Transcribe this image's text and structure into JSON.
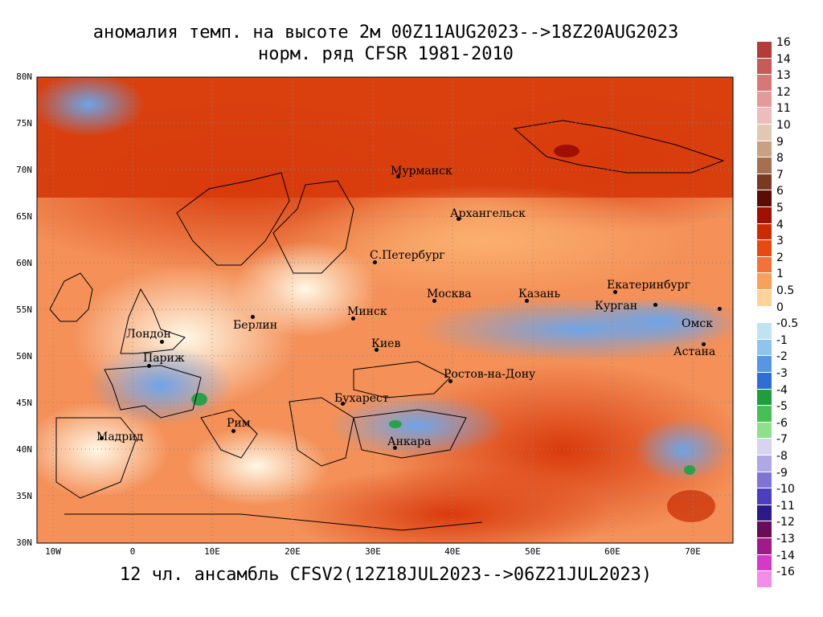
{
  "title_line1": "аномалия темп. на высоте 2м 00Z11AUG2023-->18Z20AUG2023",
  "title_line2": "норм. ряд CFSR 1981-2010",
  "footer": "12 чл. ансамбль CFSV2(12Z18JUL2023-->06Z21JUL2023)",
  "lat_labels": [
    "80N",
    "75N",
    "70N",
    "65N",
    "60N",
    "55N",
    "50N",
    "45N",
    "40N",
    "35N",
    "30N"
  ],
  "lon_labels": [
    "10W",
    "0",
    "10E",
    "20E",
    "30E",
    "40E",
    "50E",
    "60E",
    "70E"
  ],
  "cities": [
    {
      "name": "Мурманск"
    },
    {
      "name": "Архангельск"
    },
    {
      "name": "С.Петербург"
    },
    {
      "name": "Москва"
    },
    {
      "name": "Казань"
    },
    {
      "name": "Екатеринбург"
    },
    {
      "name": "Курган"
    },
    {
      "name": "Омск"
    },
    {
      "name": "Астана"
    },
    {
      "name": "Минск"
    },
    {
      "name": "Киев"
    },
    {
      "name": "Берлин"
    },
    {
      "name": "Лондон"
    },
    {
      "name": "Париж"
    },
    {
      "name": "Ростов-на-Дону"
    },
    {
      "name": "Бухарест"
    },
    {
      "name": "Рим"
    },
    {
      "name": "Мадрид"
    },
    {
      "name": "Анкара"
    }
  ],
  "colorbar": [
    {
      "label": "16",
      "color": "#b53a3a"
    },
    {
      "label": "14",
      "color": "#c85a5a"
    },
    {
      "label": "13",
      "color": "#d77878"
    },
    {
      "label": "12",
      "color": "#e59a9a"
    },
    {
      "label": "11",
      "color": "#efbcbc"
    },
    {
      "label": "10",
      "color": "#e3c7b5"
    },
    {
      "label": "9",
      "color": "#c9a080"
    },
    {
      "label": "8",
      "color": "#a57050"
    },
    {
      "label": "7",
      "color": "#7a3a22"
    },
    {
      "label": "6",
      "color": "#5a0d05"
    },
    {
      "label": "5",
      "color": "#a01000"
    },
    {
      "label": "4",
      "color": "#cc2a00"
    },
    {
      "label": "3",
      "color": "#e64a10"
    },
    {
      "label": "2",
      "color": "#f2733a"
    },
    {
      "label": "1",
      "color": "#f9a05a"
    },
    {
      "label": "0.5",
      "color": "#fdd39a"
    },
    {
      "label": "0",
      "color": "#ffffff"
    },
    {
      "label": "-0.5",
      "color": "#bfe3f3"
    },
    {
      "label": "-1",
      "color": "#8fc4ee"
    },
    {
      "label": "-2",
      "color": "#5a94e6"
    },
    {
      "label": "-3",
      "color": "#2e6fd6"
    },
    {
      "label": "-4",
      "color": "#1f9e3c"
    },
    {
      "label": "-5",
      "color": "#45c055"
    },
    {
      "label": "-6",
      "color": "#8ee08a"
    },
    {
      "label": "-7",
      "color": "#d8d4f0"
    },
    {
      "label": "-8",
      "color": "#b0a8e6"
    },
    {
      "label": "-9",
      "color": "#7f74d6"
    },
    {
      "label": "-10",
      "color": "#4b3fc0"
    },
    {
      "label": "-11",
      "color": "#2a1a8a"
    },
    {
      "label": "-12",
      "color": "#6a0a5a"
    },
    {
      "label": "-13",
      "color": "#a01a8a"
    },
    {
      "label": "-14",
      "color": "#d43ac6"
    },
    {
      "label": "-16",
      "color": "#f28ee8"
    }
  ]
}
